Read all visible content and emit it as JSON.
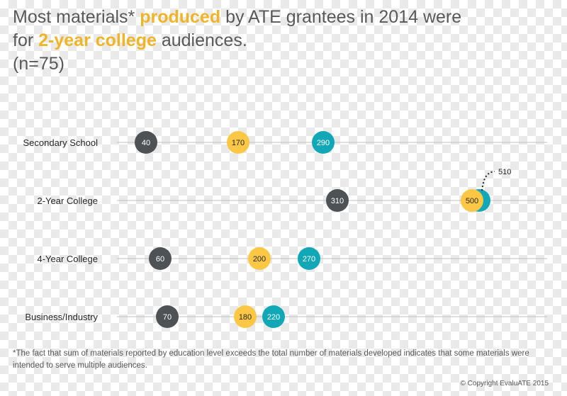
{
  "title": {
    "part1": "Most materials* ",
    "highlight1": "produced",
    "part2": " by ATE grantees in 2014 were",
    "part3": "for ",
    "highlight2": "2-year college",
    "part4": " audiences.",
    "n": "(n=75)"
  },
  "chart_data": {
    "type": "scatter",
    "categories": [
      "Secondary School",
      "2-Year College",
      "4-Year College",
      "Business/Industry"
    ],
    "series": [
      {
        "values": [
          40,
          310,
          60,
          70
        ],
        "labels": [
          "40",
          "310",
          "60",
          "70"
        ]
      },
      {
        "values": [
          170,
          500,
          200,
          180
        ],
        "labels": [
          "170",
          "500",
          "200",
          "180"
        ]
      },
      {
        "values": [
          290,
          510,
          270,
          220
        ],
        "labels": [
          "290",
          "",
          "270",
          "220"
        ]
      }
    ],
    "annotations": [
      {
        "category": "2-Year College",
        "text": "510"
      }
    ],
    "colors": [
      "#4f5254",
      "#fcc745",
      "#12a7b6"
    ],
    "xlim": [
      -40,
      570
    ],
    "grid": false
  },
  "footnote": "*The fact that sum of materials reported by education level exceeds the total number of materials developed indicates that some materials were intended to serve multiple audiences.",
  "copyright": "© Copyright EvaluATE 2015"
}
